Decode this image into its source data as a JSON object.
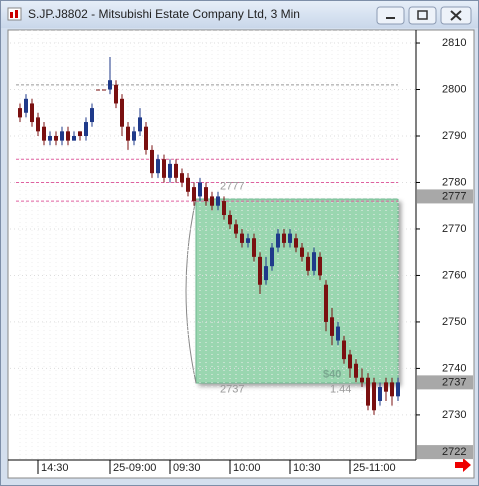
{
  "window": {
    "title": "S.JP.J8802 - Mitsubishi Estate Company Ltd, 3 Min"
  },
  "chart_data": {
    "type": "candlestick",
    "categories": [
      null,
      null,
      null,
      "14:30",
      null,
      null,
      null,
      null,
      null,
      null,
      null,
      null,
      null,
      null,
      null,
      "25-09:00",
      null,
      null,
      null,
      null,
      null,
      null,
      null,
      null,
      null,
      "09:30",
      null,
      null,
      null,
      null,
      null,
      null,
      null,
      null,
      null,
      "10:00",
      null,
      null,
      null,
      null,
      null,
      null,
      null,
      null,
      null,
      "10:30",
      null,
      null,
      null,
      null,
      null,
      null,
      null,
      null,
      null,
      "25-11:00",
      null,
      null,
      null,
      null,
      null,
      null,
      null,
      null
    ],
    "open": [
      2796,
      2795,
      2797,
      2794,
      2792,
      2789,
      2790,
      2789,
      2791,
      2789,
      2791,
      2790,
      2793,
      2800,
      2800,
      2800,
      2801,
      2798,
      2792,
      2789,
      2791,
      2792,
      2787,
      2782,
      2785,
      2781,
      2784,
      2782,
      2781,
      2779,
      2777,
      2779,
      2777,
      2775,
      2776,
      2773,
      2771,
      2769,
      2767,
      2768,
      2764,
      2759,
      2762,
      2766,
      2769,
      2767,
      2768,
      2766,
      2764,
      2761,
      2764,
      2758,
      2751,
      2746,
      2746,
      2743,
      2741,
      2738,
      2738,
      2737,
      2733,
      2737,
      2737,
      2734
    ],
    "high": [
      2797,
      2799,
      2798,
      2795,
      2793,
      2791,
      2791,
      2792,
      2792,
      2791,
      2791,
      2794,
      2797,
      2800,
      2800,
      2807,
      2802,
      2799,
      2793,
      2792,
      2796,
      2793,
      2788,
      2786,
      2786,
      2785,
      2785,
      2783,
      2782,
      2780,
      2781,
      2780,
      2778,
      2778,
      2777,
      2774,
      2772,
      2770,
      2769,
      2769,
      2765,
      2764,
      2767,
      2770,
      2770,
      2770,
      2769,
      2767,
      2765,
      2766,
      2765,
      2759,
      2753,
      2750,
      2747,
      2744,
      2742,
      2740,
      2739,
      2738,
      2737,
      2738,
      2738,
      2738
    ],
    "low": [
      2793,
      2794,
      2792,
      2790,
      2788,
      2788,
      2788,
      2788,
      2788,
      2789,
      2789,
      2789,
      2792,
      2800,
      2800,
      2799,
      2796,
      2790,
      2787,
      2788,
      2790,
      2786,
      2781,
      2781,
      2780,
      2780,
      2780,
      2779,
      2777,
      2775,
      2776,
      2775,
      2774,
      2774,
      2772,
      2770,
      2768,
      2766,
      2766,
      2763,
      2756,
      2758,
      2761,
      2765,
      2766,
      2766,
      2765,
      2763,
      2760,
      2760,
      2759,
      2748,
      2745,
      2745,
      2741,
      2738,
      2737,
      2736,
      2731,
      2730,
      2732,
      2733,
      2732,
      2733
    ],
    "close": [
      2794,
      2798,
      2793,
      2791,
      2789,
      2790,
      2789,
      2791,
      2789,
      2790,
      2790,
      2793,
      2796,
      2800,
      2800,
      2802,
      2797,
      2792,
      2789,
      2791,
      2794,
      2787,
      2782,
      2785,
      2781,
      2784,
      2781,
      2780,
      2778,
      2776,
      2780,
      2776,
      2775,
      2777,
      2773,
      2771,
      2769,
      2767,
      2768,
      2764,
      2758,
      2762,
      2766,
      2769,
      2767,
      2769,
      2766,
      2764,
      2761,
      2765,
      2760,
      2750,
      2747,
      2749,
      2742,
      2740,
      2738,
      2737,
      2732,
      2731,
      2736,
      2735,
      2734,
      2737
    ],
    "up_color": "#1f3a8a",
    "down_color": "#7a1010",
    "ylim": [
      2720.3,
      2812.8
    ],
    "yticks": [
      2730,
      2740,
      2750,
      2760,
      2770,
      2780,
      2790,
      2800,
      2810
    ],
    "price_markers": [
      2777,
      2737,
      2722
    ],
    "levels": [
      {
        "value": 2801,
        "color": "#999999"
      },
      {
        "value": 2785,
        "color": "#e060a0"
      },
      {
        "value": 2780,
        "color": "#e060a0"
      },
      {
        "value": 2776,
        "color": "#e060a0"
      }
    ],
    "measure_box": {
      "high": 2777,
      "low": 2737,
      "profit": "$40",
      "ratio": 1.44
    }
  }
}
